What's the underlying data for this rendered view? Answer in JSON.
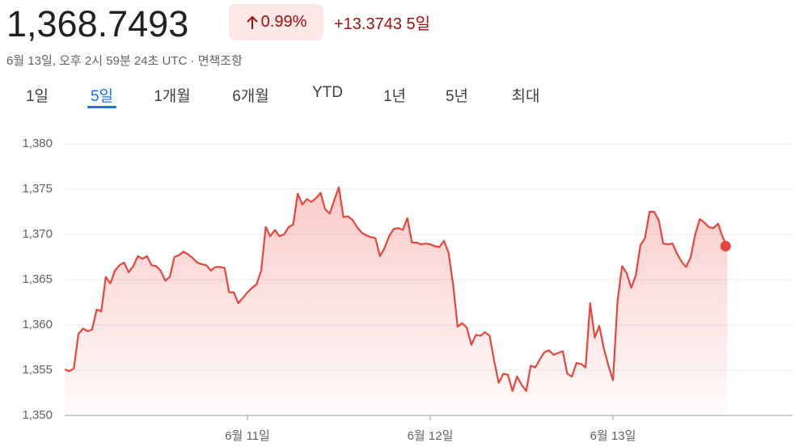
{
  "header": {
    "price": "1,368.7493",
    "change_percent": "0.99%",
    "change": "+13.3743",
    "period": "5일",
    "timestamp": "6월 13일, 오후 2시 59분 24초 UTC ·",
    "disclaimer": "면책조항"
  },
  "tabs": [
    "1일",
    "5일",
    "1개월",
    "6개월",
    "YTD",
    "1년",
    "5년",
    "최대"
  ],
  "chart_data": {
    "type": "line",
    "color": "#e8453c",
    "grid": true,
    "ylim": [
      1350,
      1382.5
    ],
    "yticks": [
      {
        "value": 1350,
        "label": "1,350"
      },
      {
        "value": 1355,
        "label": "1,355"
      },
      {
        "value": 1360,
        "label": "1,360"
      },
      {
        "value": 1365,
        "label": "1,365"
      },
      {
        "value": 1370,
        "label": "1,370"
      },
      {
        "value": 1375,
        "label": "1,375"
      },
      {
        "value": 1380,
        "label": "1,380"
      }
    ],
    "categories": [
      null,
      null,
      null,
      null,
      null,
      null,
      null,
      null,
      null,
      null,
      null,
      null,
      null,
      null,
      null,
      null,
      null,
      null,
      null,
      null,
      null,
      null,
      null,
      null,
      null,
      null,
      null,
      null,
      null,
      null,
      null,
      null,
      null,
      null,
      null,
      null,
      null,
      null,
      null,
      null,
      "6월 11일",
      null,
      null,
      null,
      null,
      null,
      null,
      null,
      null,
      null,
      null,
      null,
      null,
      null,
      null,
      null,
      null,
      null,
      null,
      null,
      null,
      null,
      null,
      null,
      null,
      null,
      null,
      null,
      null,
      null,
      null,
      null,
      null,
      null,
      null,
      null,
      null,
      null,
      null,
      null,
      "6월 12일",
      null,
      null,
      null,
      null,
      null,
      null,
      null,
      null,
      null,
      null,
      null,
      null,
      null,
      null,
      null,
      null,
      null,
      null,
      null,
      null,
      null,
      null,
      null,
      null,
      null,
      null,
      null,
      null,
      null,
      null,
      null,
      null,
      null,
      null,
      null,
      null,
      null,
      null,
      null,
      "6월 13일",
      null,
      null,
      null,
      null,
      null,
      null,
      null,
      null,
      null,
      null,
      null,
      null,
      null,
      null,
      null,
      null,
      null,
      null,
      null,
      null,
      null,
      null,
      null,
      null,
      null
    ],
    "values": [
      1355.1,
      1354.9,
      1355.2,
      1359.0,
      1359.6,
      1359.3,
      1359.5,
      1361.7,
      1361.5,
      1365.3,
      1364.6,
      1366.0,
      1366.6,
      1366.9,
      1365.8,
      1366.5,
      1367.6,
      1367.3,
      1367.6,
      1366.6,
      1366.5,
      1366.0,
      1364.9,
      1365.3,
      1367.5,
      1367.7,
      1368.1,
      1367.8,
      1367.4,
      1366.9,
      1366.7,
      1366.6,
      1366.0,
      1366.4,
      1366.4,
      1366.3,
      1363.6,
      1363.6,
      1362.4,
      1363.0,
      1363.6,
      1364.1,
      1364.5,
      1366.0,
      1370.8,
      1369.8,
      1370.5,
      1369.8,
      1370.0,
      1370.8,
      1371.1,
      1374.5,
      1373.3,
      1373.9,
      1373.6,
      1374.0,
      1374.6,
      1372.8,
      1372.3,
      1373.8,
      1375.2,
      1371.9,
      1372.0,
      1371.6,
      1370.8,
      1370.2,
      1369.9,
      1369.7,
      1369.6,
      1367.6,
      1368.5,
      1369.8,
      1370.6,
      1370.7,
      1370.5,
      1371.8,
      1369.1,
      1369.1,
      1368.9,
      1369.0,
      1368.9,
      1368.7,
      1368.6,
      1369.3,
      1368.0,
      1364.5,
      1359.8,
      1360.2,
      1359.7,
      1357.8,
      1358.9,
      1358.8,
      1359.2,
      1358.8,
      1356.0,
      1353.6,
      1354.6,
      1354.5,
      1352.7,
      1354.3,
      1353.4,
      1352.7,
      1355.5,
      1355.3,
      1356.2,
      1357.0,
      1357.2,
      1356.7,
      1356.9,
      1357.1,
      1354.6,
      1354.3,
      1355.8,
      1355.7,
      1355.3,
      1362.4,
      1358.6,
      1359.9,
      1357.4,
      1355.5,
      1353.9,
      1362.7,
      1366.5,
      1365.7,
      1364.1,
      1365.5,
      1368.8,
      1369.6,
      1372.5,
      1372.5,
      1371.6,
      1369.0,
      1368.9,
      1369.0,
      1367.9,
      1367.0,
      1366.4,
      1367.5,
      1370.0,
      1371.7,
      1371.3,
      1370.8,
      1370.7,
      1371.2,
      1369.7,
      1368.7
    ]
  }
}
